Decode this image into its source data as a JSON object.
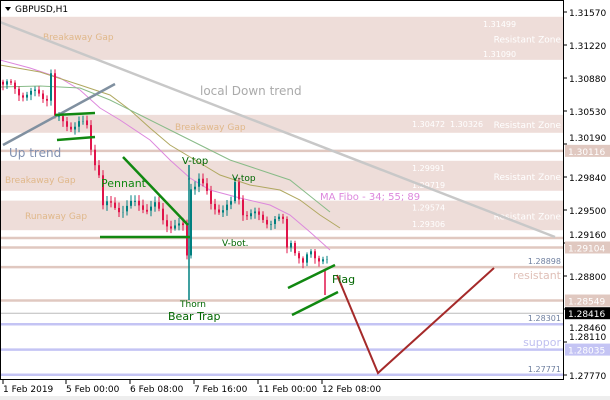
{
  "symbol_title": "GBPUSD,H1",
  "colors": {
    "zone": "#eeddd9",
    "zone_line": "#e0c8c0",
    "support": "#c4c4f4",
    "bull": "#008080",
    "bear": "#e0144a",
    "pattern": "#118811",
    "projection": "#a52a2a",
    "downtrend": "#c8c8c8",
    "uptrend": "#8090a0",
    "ma_fast": "#dd88dd",
    "ma_mid": "#b0a860",
    "ma_slow": "#88bb88"
  },
  "price_axis": [
    "1.31570",
    "1.31220",
    "1.30880",
    "1.30530",
    "1.30190",
    "1.29840",
    "1.29500",
    "1.29160",
    "1.28800",
    "1.28460",
    "1.28110",
    "1.27770"
  ],
  "time_axis": [
    "1 Feb 2019",
    "5 Feb 00:00",
    "6 Feb 08:00",
    "7 Feb 16:00",
    "11 Feb 00:00",
    "12 Feb 08:00"
  ],
  "current_price": "1.28416",
  "zones": [
    {
      "label": "Breakaway Gap",
      "top": "1.31499",
      "bottom": "1.31090",
      "right_label": "Resistant Zone"
    },
    {
      "label": "Breakaway Gap",
      "top": "1.30472",
      "bottom": "1.30326",
      "right_label": "Resistant Zone"
    },
    {
      "label": "Breakaway Gap",
      "top": "1.29991",
      "bottom": "1.29719",
      "right_label": "Resistant Zone"
    },
    {
      "label": "Runaway Gap",
      "top": "1.29574",
      "bottom": "1.29306",
      "right_label": "Resistant Zone"
    }
  ],
  "levels": [
    {
      "price": "1.30116",
      "kind": "resistance",
      "axis_label": true
    },
    {
      "price": "1.29104",
      "kind": "resistance",
      "axis_label": true
    },
    {
      "price": "1.28898",
      "kind": "resistance",
      "axis_label": false
    },
    {
      "price": "1.28549",
      "kind": "resistance",
      "axis_label": true
    },
    {
      "price": "1.28301",
      "kind": "support",
      "axis_label": false
    },
    {
      "price": "1.28035",
      "kind": "support",
      "axis_label": true
    },
    {
      "price": "1.27771",
      "kind": "support",
      "axis_label": false
    }
  ],
  "annotations": {
    "local_down_trend": "local Down trend",
    "up_trend": "Up trend",
    "pennant": "Pennant",
    "v_top_1": "V-top",
    "v_top_2": "V-top",
    "v_bot": "V-bot.",
    "thorn": "Thorn",
    "bear_trap": "Bear Trap",
    "flag": "Flag",
    "ma_fibo": "MA Fibo - 34; 55; 89",
    "resistant": "resistant",
    "support": "suppor"
  },
  "price_path": [
    [
      0,
      1.3081
    ],
    [
      3,
      1.3076
    ],
    [
      7,
      1.307
    ],
    [
      11,
      1.307
    ],
    [
      12,
      1.3095
    ],
    [
      13,
      1.3044
    ],
    [
      15,
      1.304
    ],
    [
      19,
      1.304
    ],
    [
      21,
      1.3035
    ],
    [
      22,
      1.3015
    ],
    [
      24,
      1.299
    ],
    [
      25,
      1.2953
    ],
    [
      30,
      1.2953
    ],
    [
      35,
      1.2955
    ],
    [
      38,
      1.2953
    ],
    [
      40,
      1.2938
    ],
    [
      43,
      1.2935
    ],
    [
      45,
      1.2928
    ],
    [
      46,
      1.29
    ],
    [
      47,
      1.2975
    ],
    [
      49,
      1.2985
    ],
    [
      52,
      1.2953
    ],
    [
      57,
      1.2953
    ],
    [
      58,
      1.2975
    ],
    [
      60,
      1.295
    ],
    [
      64,
      1.294
    ],
    [
      68,
      1.294
    ],
    [
      70,
      1.2935
    ],
    [
      71,
      1.291
    ],
    [
      72,
      1.292
    ],
    [
      75,
      1.289
    ],
    [
      77,
      1.2905
    ],
    [
      80,
      1.29
    ],
    [
      81,
      1.2895
    ]
  ]
}
